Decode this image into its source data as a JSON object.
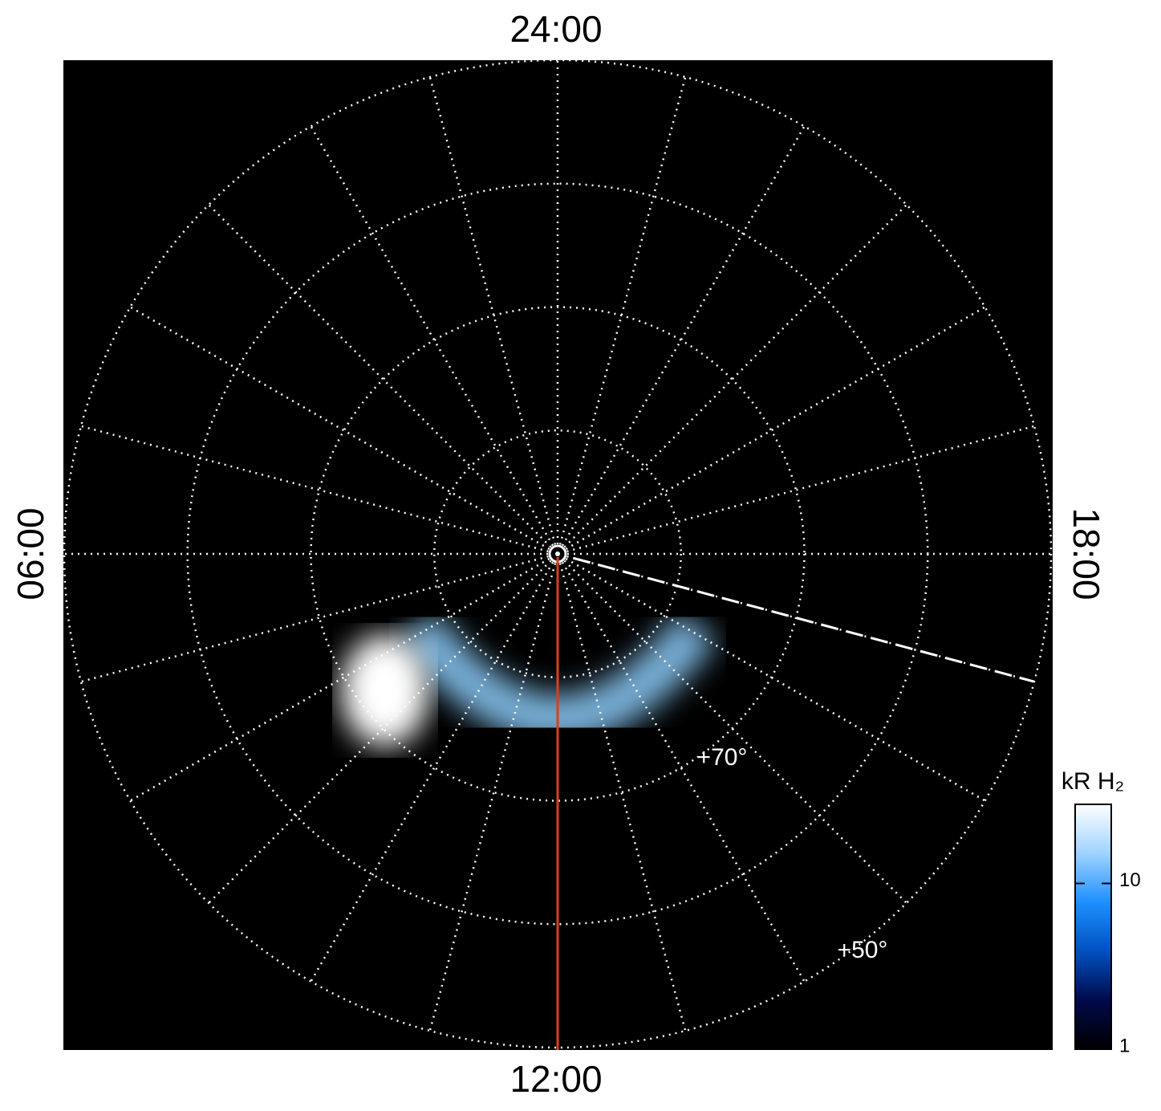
{
  "chart_data": {
    "type": "polar",
    "hour_labels": [
      "24:00",
      "06:00",
      "12:00",
      "18:00"
    ],
    "hour_step": 1,
    "rlim": [
      90,
      50
    ],
    "rgrid": [
      80,
      70,
      60,
      50
    ],
    "rticks": [
      {
        "value": 70,
        "label": "+70°"
      },
      {
        "value": 50,
        "label": "+50°"
      }
    ],
    "grid": true,
    "colorbar": {
      "label": "kR H₂",
      "lim": [
        1,
        30
      ],
      "ticks": [
        1,
        10
      ],
      "log": true,
      "colors": [
        "#000000",
        "#000a4a",
        "#0050c0",
        "#1e90ff",
        "#9fd3ff",
        "#ffffff"
      ]
    }
  }
}
